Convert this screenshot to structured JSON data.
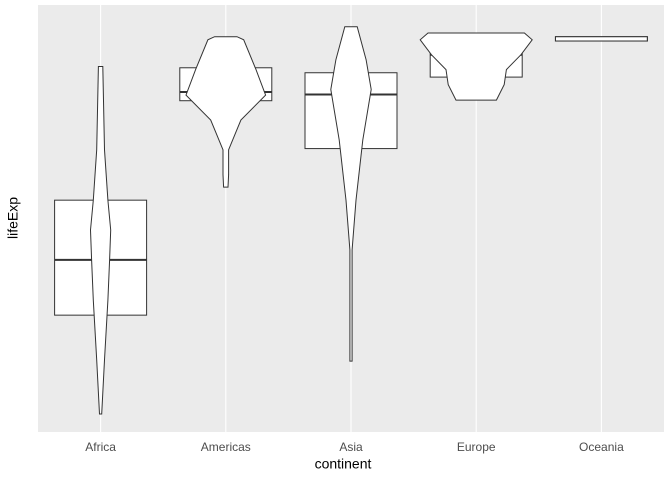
{
  "chart_data": {
    "type": "violin-box",
    "x_label": "continent",
    "y_label": "lifeExp",
    "categories": [
      "Africa",
      "Americas",
      "Asia",
      "Europe",
      "Oceania"
    ],
    "ylim": [
      17.4,
      86.1
    ],
    "boxes": [
      {
        "q1": 36.2,
        "median": 45.1,
        "q3": 54.7
      },
      {
        "q1": 70.7,
        "median": 72.1,
        "q3": 76.0
      },
      {
        "q1": 63.0,
        "median": 71.7,
        "q3": 75.2
      },
      {
        "q1": 74.5,
        "median": 78.1,
        "q3": 79.9
      },
      {
        "q1": 80.3,
        "median": 80.7,
        "q3": 81.0
      }
    ],
    "violins": [
      {
        "values": [
          20.3,
          29.0,
          38.6,
          45.1,
          49.9,
          54.7,
          62.8,
          76.2
        ],
        "density": [
          0.02,
          0.07,
          0.13,
          0.16,
          0.18,
          0.13,
          0.07,
          0.04
        ]
      },
      {
        "values": [
          56.8,
          58.8,
          62.8,
          67.6,
          71.6,
          75.7,
          80.5,
          81.0
        ],
        "density": [
          0.04,
          0.05,
          0.05,
          0.27,
          0.71,
          0.54,
          0.32,
          0.2
        ]
      },
      {
        "values": [
          28.8,
          46.7,
          54.7,
          64.4,
          72.5,
          77.3,
          82.6
        ],
        "density": [
          0.02,
          0.02,
          0.09,
          0.21,
          0.36,
          0.27,
          0.11
        ]
      },
      {
        "values": [
          70.8,
          73.3,
          75.7,
          78.1,
          80.5,
          81.6
        ],
        "density": [
          0.36,
          0.5,
          0.54,
          0.8,
          1.0,
          0.86
        ]
      },
      {
        "values": [
          80.3,
          81.0
        ],
        "density": [
          0.82,
          0.82
        ]
      }
    ],
    "background": "#ebebeb",
    "fill": "#ffffff",
    "stroke": "#333333"
  }
}
